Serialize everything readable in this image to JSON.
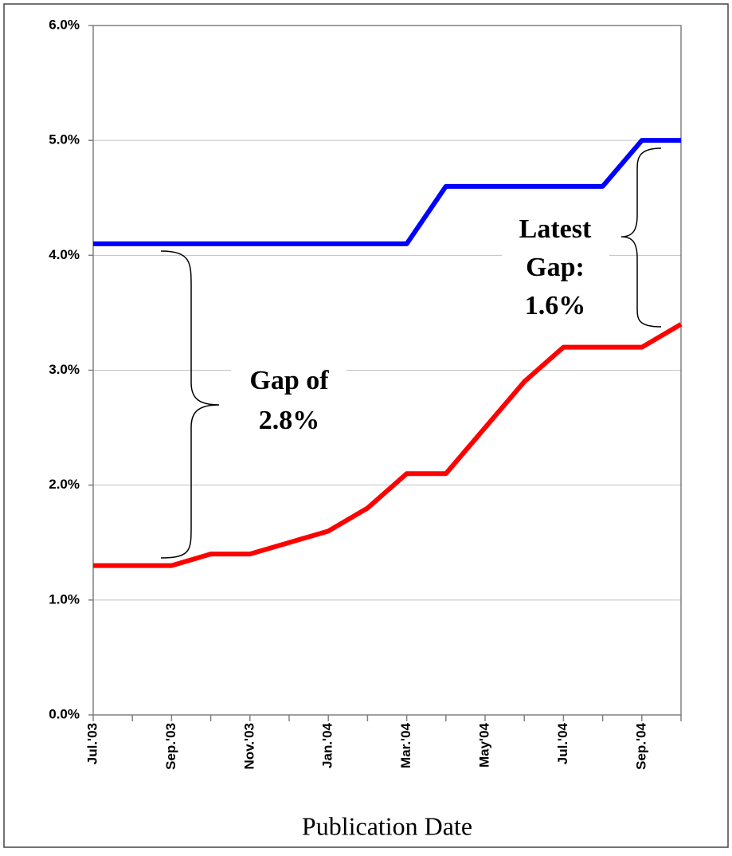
{
  "chart_data": {
    "type": "line",
    "x_label": "Publication Date",
    "categories": [
      "Jul.'03",
      null,
      "Sep.'03",
      null,
      "Nov.'03",
      null,
      "Jan.'04",
      null,
      "Mar.'04",
      null,
      "May'04",
      null,
      "Jul.'04",
      null,
      "Sep.'04",
      null
    ],
    "series": [
      {
        "color": "#0000ff",
        "values": [
          4.1,
          4.1,
          4.1,
          4.1,
          4.1,
          4.1,
          4.1,
          4.1,
          4.1,
          4.6,
          4.6,
          4.6,
          4.6,
          4.6,
          5.0,
          5.0
        ]
      },
      {
        "color": "#ff0000",
        "values": [
          1.3,
          1.3,
          1.3,
          1.4,
          1.4,
          1.5,
          1.6,
          1.8,
          2.1,
          2.1,
          2.5,
          2.9,
          3.2,
          3.2,
          3.2,
          3.4
        ]
      }
    ],
    "ylim": [
      0,
      6
    ],
    "yticks": [
      {
        "value": 0,
        "label": "0.0%"
      },
      {
        "value": 1,
        "label": "1.0%"
      },
      {
        "value": 2,
        "label": "2.0%"
      },
      {
        "value": 3,
        "label": "3.0%"
      },
      {
        "value": 4,
        "label": "4.0%"
      },
      {
        "value": 5,
        "label": "5.0%"
      },
      {
        "value": 6,
        "label": "6.0%"
      }
    ],
    "grid": true,
    "annotations": [
      {
        "lines": [
          "Gap of",
          "2.8%"
        ]
      },
      {
        "lines": [
          "Latest",
          "Gap:",
          "1.6%"
        ]
      }
    ]
  }
}
